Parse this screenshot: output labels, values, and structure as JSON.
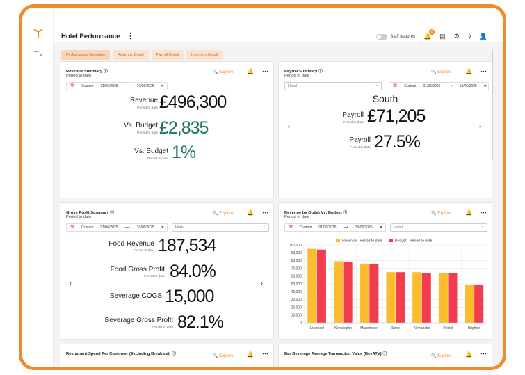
{
  "header": {
    "title": "Hotel Performance",
    "staff_features": "Staff features",
    "notification_count": "0"
  },
  "tabs": [
    "Performance Overview",
    "Revenue Detail",
    "Payroll Detail",
    "Inventory Detail"
  ],
  "common": {
    "explore": "Explore",
    "period_to_date": "Period to date",
    "custom": "Custom",
    "date_from": "01/06/2025",
    "date_to": "10/06/2025",
    "hotel_placeholder": "Hotel"
  },
  "revenue_summary": {
    "title": "Revenue Summary",
    "rows": [
      {
        "label": "Revenue",
        "sub": "Period to date",
        "value": "£496,300"
      },
      {
        "label": "Vs. Budget",
        "sub": "Period to date",
        "value": "£2,835"
      },
      {
        "label": "Vs. Budget",
        "sub": "Period to date",
        "value": "1%"
      }
    ]
  },
  "payroll_summary": {
    "title": "Payroll Summary",
    "region": "South",
    "rows": [
      {
        "label": "Payroll",
        "sub": "Period to date",
        "value": "£71,205"
      },
      {
        "label": "Payroll",
        "sub": "Period to date",
        "value": "27.5%"
      }
    ]
  },
  "gross_profit": {
    "title": "Gross Profit Summary",
    "rows": [
      {
        "label": "Food Revenue",
        "sub": "Period to date",
        "value": "187,534"
      },
      {
        "label": "Food Gross Profit",
        "sub": "Period to date",
        "value": "84.0%"
      },
      {
        "label": "Beverage COGS",
        "sub": "",
        "value": "15,000"
      },
      {
        "label": "Beverage Gross Profit",
        "sub": "Period to date",
        "value": "82.1%"
      }
    ]
  },
  "revenue_by_outlet": {
    "title": "Revenue by Outlet Vs. Budget"
  },
  "bottom_cards": {
    "left_title": "Restaurant Spend Per Customer (Excluding Breakfast)",
    "right_title": "Bar Beverage Average Transaction Value (BevATV)"
  },
  "colors": {
    "accent": "#f08a2c",
    "revenue_bar": "#fbbd2e",
    "budget_bar": "#f23d4f",
    "positive": "#1d7464"
  },
  "chart_data": {
    "type": "bar",
    "categories": [
      "Liverpool",
      "Kensington",
      "Manchester",
      "Soho",
      "Newcastle",
      "Bristol",
      "Brighton"
    ],
    "series": [
      {
        "name": "Revenue - Period to date",
        "values": [
          95000,
          79000,
          76000,
          65000,
          65000,
          64000,
          49000
        ]
      },
      {
        "name": "Budget - Period to date",
        "values": [
          94000,
          78000,
          75000,
          65000,
          64000,
          64000,
          49000
        ]
      }
    ],
    "yticks": [
      "100,000",
      "90,000",
      "80,000",
      "70,000",
      "60,000",
      "50,000",
      "40,000",
      "30,000",
      "20,000",
      "10,000",
      "0"
    ],
    "ylim": [
      0,
      100000
    ],
    "legend": "top",
    "grid": true
  }
}
